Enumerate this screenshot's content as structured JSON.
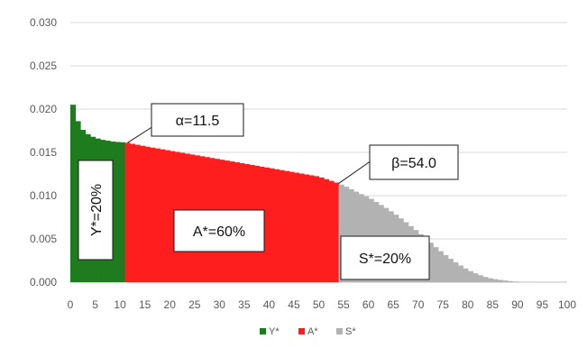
{
  "chart_data": {
    "type": "area",
    "title": "",
    "xlabel": "",
    "ylabel": "",
    "xlim": [
      0,
      100
    ],
    "ylim": [
      0,
      0.03
    ],
    "x_ticks": [
      "0",
      "5",
      "10",
      "15",
      "20",
      "25",
      "30",
      "35",
      "40",
      "45",
      "50",
      "55",
      "60",
      "65",
      "70",
      "75",
      "80",
      "85",
      "90",
      "95",
      "100"
    ],
    "y_ticks": [
      "0.000",
      "0.005",
      "0.010",
      "0.015",
      "0.020",
      "0.025",
      "0.030"
    ],
    "grid": "horizontal",
    "legend_position": "bottom",
    "series": [
      {
        "name": "Y*",
        "color": "#1e7b1e",
        "x_range": [
          0,
          11.5
        ]
      },
      {
        "name": "A*",
        "color": "#ff1e1e",
        "x_range": [
          11.5,
          54.0
        ]
      },
      {
        "name": "S*",
        "color": "#b2b2b2",
        "x_range": [
          54.0,
          100
        ]
      }
    ],
    "curve": {
      "x": [
        0,
        0.5,
        1,
        1.5,
        2,
        3,
        4,
        5,
        6,
        7,
        8,
        9,
        10,
        11.5,
        15,
        20,
        25,
        30,
        35,
        40,
        45,
        50,
        54,
        56,
        58,
        60,
        62,
        64,
        66,
        68,
        70,
        72,
        74,
        76,
        78,
        80,
        82,
        84,
        86,
        88,
        90,
        92,
        94,
        100
      ],
      "y": [
        0.021,
        0.0205,
        0.0194,
        0.0186,
        0.0179,
        0.0173,
        0.0169,
        0.0167,
        0.0165,
        0.0164,
        0.0163,
        0.0162,
        0.0162,
        0.0161,
        0.0157,
        0.0152,
        0.0147,
        0.0142,
        0.0137,
        0.0132,
        0.0127,
        0.0122,
        0.0114,
        0.0109,
        0.0103,
        0.0098,
        0.0091,
        0.0084,
        0.0076,
        0.0067,
        0.0058,
        0.0048,
        0.0038,
        0.0029,
        0.0021,
        0.0014,
        0.0009,
        0.0005,
        0.0003,
        0.00015,
        5e-05,
        2e-05,
        0.0,
        0.0
      ]
    },
    "annotations": [
      {
        "text": "α=11.5",
        "x": 11.5
      },
      {
        "text": "β=54.0",
        "x": 54.0
      },
      {
        "text": "Y*=20%",
        "series": "Y*"
      },
      {
        "text": "A*=60%",
        "series": "A*"
      },
      {
        "text": "S*=20%",
        "series": "S*"
      }
    ]
  }
}
